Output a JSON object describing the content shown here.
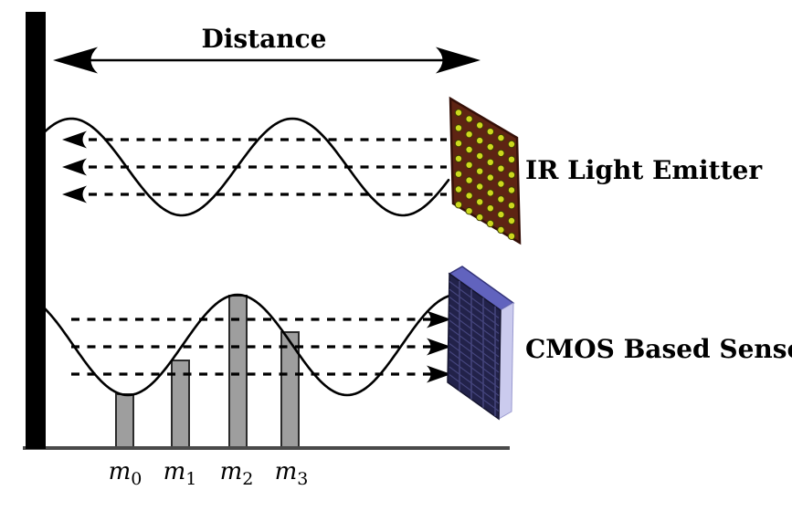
{
  "labels": {
    "distance": "Distance",
    "emitter": "IR Light Emitter",
    "sensor": "CMOS Based Sensor"
  },
  "measurement_labels": [
    {
      "base": "m",
      "sub": "0"
    },
    {
      "base": "m",
      "sub": "1"
    },
    {
      "base": "m",
      "sub": "2"
    },
    {
      "base": "m",
      "sub": "3"
    }
  ],
  "colors": {
    "line": "#000000",
    "wall": "#000000",
    "baseline": "#4a4a4a",
    "bar_fill": "#9e9e9e",
    "bar_border": "#2b2b2b",
    "emitter_panel": "#5e2413",
    "emitter_border": "#351008",
    "emitter_dot": "#ccd81d",
    "emitter_dot_ring": "#3a3a00",
    "sensor_front": "#22224a",
    "sensor_top": "#6163be",
    "sensor_side": "#cbcbee",
    "sensor_stripe": "#45457d",
    "text": "#000000"
  }
}
